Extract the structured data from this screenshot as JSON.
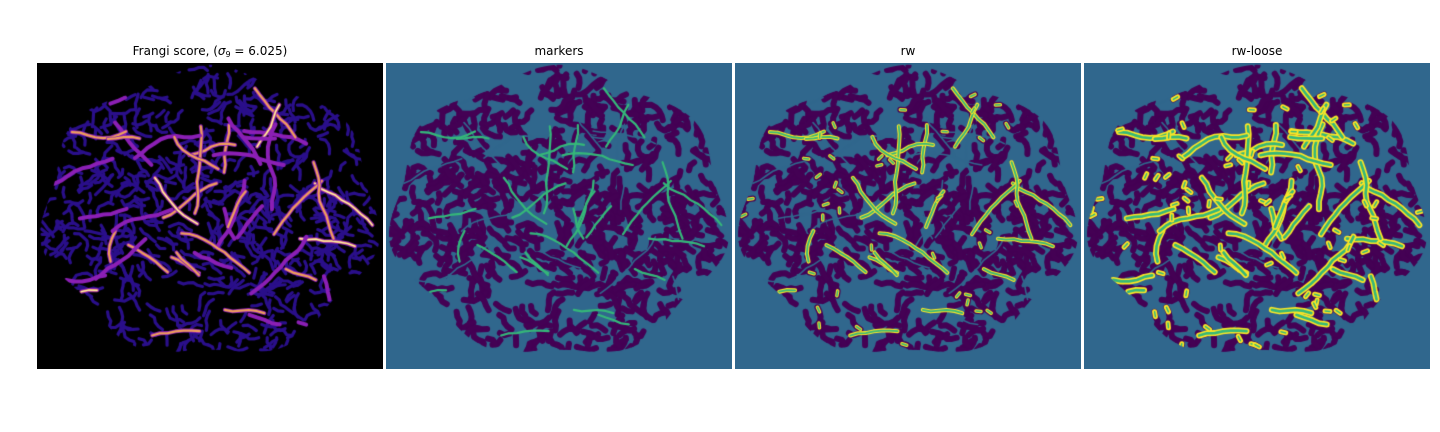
{
  "figure": {
    "panels": [
      {
        "id": "frangi",
        "title_prefix": "Frangi score, (",
        "title_sigma": "σ",
        "title_subscript": "9",
        "title_suffix": " = 6.025)",
        "colormap": "magma",
        "colors": {
          "background": "#000000",
          "low": "#2a0f8a",
          "mid": "#8b1fb5",
          "high": "#f0a05a",
          "peak": "#fff2b0"
        }
      },
      {
        "id": "markers",
        "title": "markers",
        "colors": {
          "background": "#30678d",
          "blobs": "#440154",
          "marker": "#35b779"
        }
      },
      {
        "id": "rw",
        "title": "rw",
        "colors": {
          "background": "#30678d",
          "blobs": "#440154",
          "vessel_fill": "#35b779",
          "vessel_edge": "#fde725"
        }
      },
      {
        "id": "rw-loose",
        "title": "rw-loose",
        "colors": {
          "background": "#30678d",
          "blobs": "#440154",
          "vessel_fill": "#35b779",
          "vessel_edge": "#fde725"
        }
      }
    ]
  }
}
